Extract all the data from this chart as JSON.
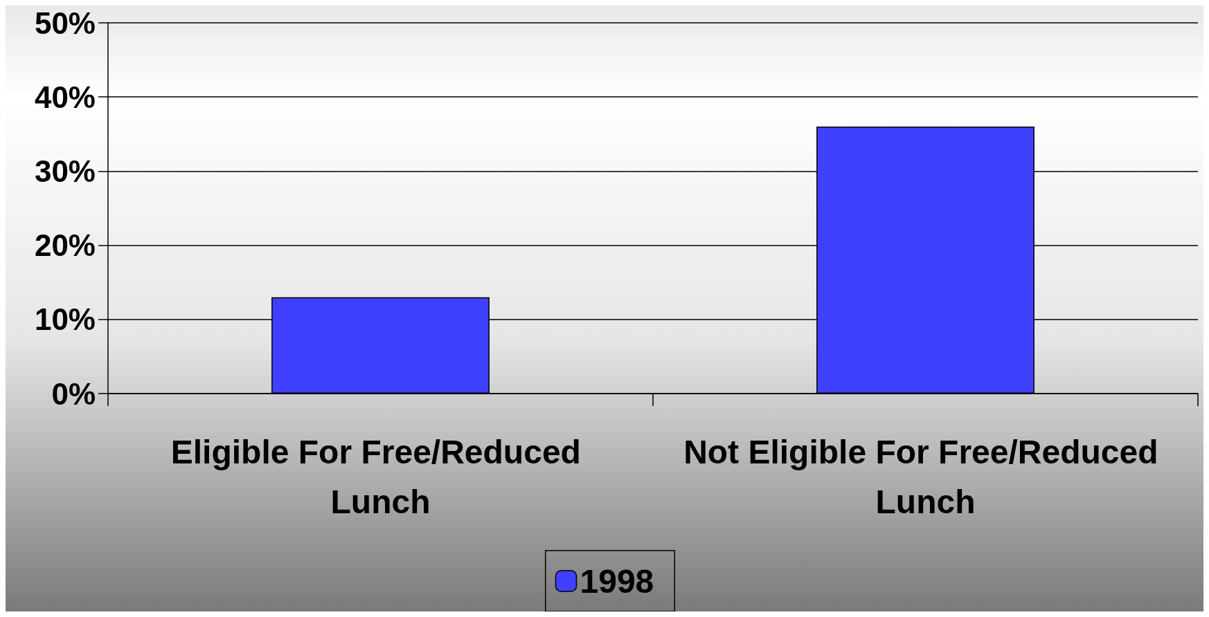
{
  "chart_data": {
    "type": "bar",
    "categories": [
      "Eligible For Free/Reduced Lunch",
      "Not Eligible For Free/Reduced Lunch"
    ],
    "series": [
      {
        "name": "1998",
        "color": "#4040ff",
        "values": [
          13,
          36
        ]
      }
    ],
    "ylim": [
      0,
      50
    ],
    "yticks": [
      {
        "value": 0,
        "label": "0%"
      },
      {
        "value": 10,
        "label": "10%"
      },
      {
        "value": 20,
        "label": "20%"
      },
      {
        "value": 30,
        "label": "30%"
      },
      {
        "value": 40,
        "label": "40%"
      },
      {
        "value": 50,
        "label": "50%"
      }
    ],
    "grid": "y",
    "legend": "bottom"
  }
}
